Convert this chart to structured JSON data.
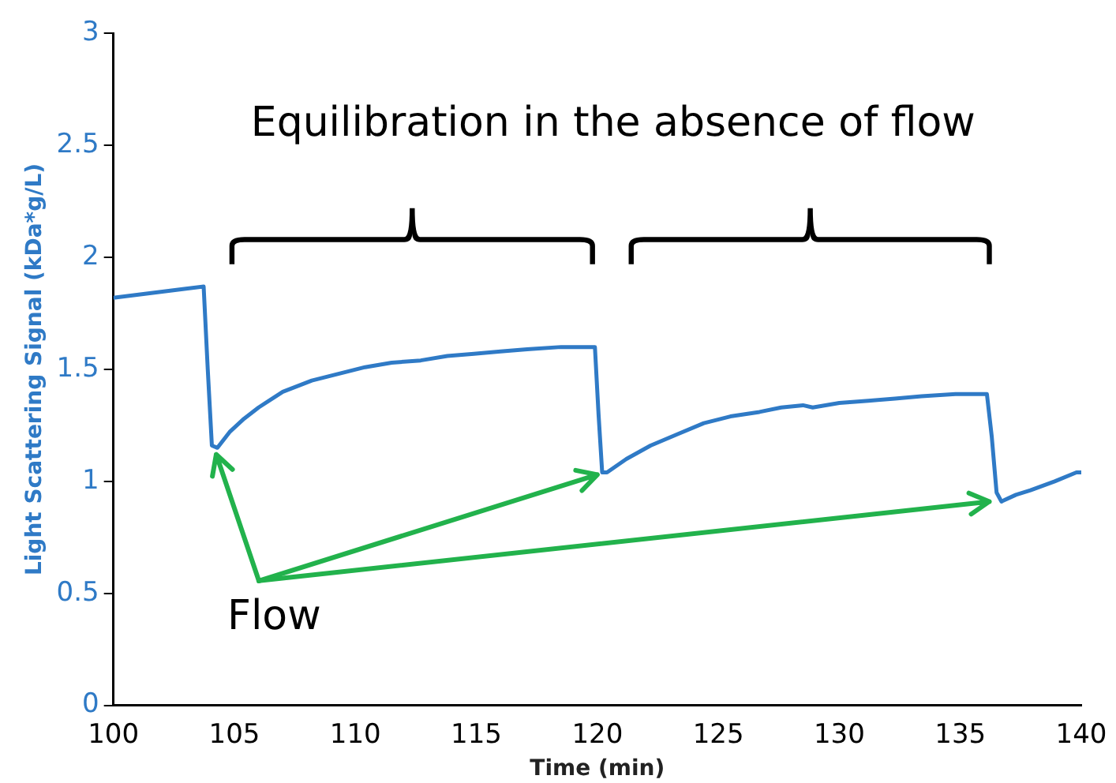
{
  "chart_data": {
    "type": "line",
    "xlabel": "Time (min)",
    "ylabel": "Light Scattering Signal (kDa*g/L)",
    "annotations": [
      "Equilibration in the absence of flow",
      {
        "text": "Flow",
        "x": 104.25,
        "y": 1.12
      }
    ],
    "xlim": [
      100,
      140
    ],
    "xticks": [
      100,
      105,
      110,
      115,
      120,
      125,
      130,
      135,
      140
    ],
    "ylim": [
      0,
      3
    ],
    "yticks": [
      0,
      0.5,
      1,
      1.5,
      2,
      2.5,
      3
    ],
    "grid": false,
    "legend": false,
    "marker": "none",
    "line_style": "solid",
    "series": [
      {
        "color": "#2f7ac6",
        "x": [
          100,
          101.5,
          103,
          103.73,
          103.9,
          104.07,
          104.3,
          104.8,
          105.4,
          106,
          107,
          108.2,
          109.3,
          110.4,
          111.5,
          112.7,
          113.8,
          114.9,
          116,
          117.1,
          118.5,
          119.9,
          120.05,
          120.2,
          120.4,
          121.2,
          122.2,
          123.3,
          124.4,
          125.5,
          126.7,
          127.6,
          128.5,
          128.9,
          130,
          131.2,
          132.3,
          133.4,
          134.8,
          136.1,
          136.3,
          136.5,
          136.7,
          137.3,
          137.9,
          138.9,
          139.8,
          140
        ],
        "values": [
          1.82,
          1.84,
          1.86,
          1.87,
          1.5,
          1.16,
          1.15,
          1.22,
          1.28,
          1.33,
          1.4,
          1.45,
          1.48,
          1.51,
          1.53,
          1.54,
          1.56,
          1.57,
          1.58,
          1.59,
          1.6,
          1.6,
          1.3,
          1.04,
          1.04,
          1.1,
          1.16,
          1.21,
          1.26,
          1.29,
          1.31,
          1.33,
          1.34,
          1.33,
          1.35,
          1.36,
          1.37,
          1.38,
          1.39,
          1.39,
          1.2,
          0.95,
          0.91,
          0.94,
          0.96,
          1.0,
          1.04,
          1.04
        ]
      }
    ]
  }
}
